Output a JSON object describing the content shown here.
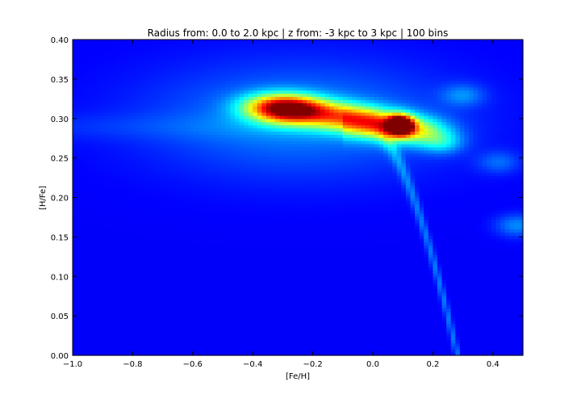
{
  "chart_data": {
    "type": "heatmap",
    "title": "Radius from: 0.0 to 2.0 kpc | z from: -3 kpc to 3 kpc | 100 bins",
    "xlabel": "[Fe/H]",
    "ylabel": "[H/Fe]",
    "xlim": [
      -1.0,
      0.5
    ],
    "ylim": [
      0.0,
      0.4
    ],
    "bins": 100,
    "colormap": "jet",
    "grid": false,
    "x_ticks": [
      -1.0,
      -0.8,
      -0.6,
      -0.4,
      -0.2,
      0.0,
      0.2,
      0.4
    ],
    "x_tick_labels": [
      "−1.0",
      "−0.8",
      "−0.6",
      "−0.4",
      "−0.2",
      "0.0",
      "0.2",
      "0.4"
    ],
    "y_ticks": [
      0.0,
      0.05,
      0.1,
      0.15,
      0.2,
      0.25,
      0.3,
      0.35,
      0.4
    ],
    "y_tick_labels": [
      "0.00",
      "0.05",
      "0.10",
      "0.15",
      "0.20",
      "0.25",
      "0.30",
      "0.35",
      "0.40"
    ],
    "density_features": [
      {
        "name": "peak",
        "x": 0.09,
        "y": 0.292,
        "weight": 1.0
      },
      {
        "name": "ridge",
        "x": -0.25,
        "y": 0.311,
        "weight": 0.58
      },
      {
        "name": "ridge",
        "x": -0.33,
        "y": 0.315,
        "weight": 0.45
      },
      {
        "name": "ridge",
        "x": -0.1,
        "y": 0.303,
        "weight": 0.38
      },
      {
        "name": "ridge",
        "x": 0.02,
        "y": 0.295,
        "weight": 0.35
      },
      {
        "name": "ridge",
        "x": 0.13,
        "y": 0.285,
        "weight": 0.4
      },
      {
        "name": "tail",
        "x": 0.23,
        "y": 0.27,
        "weight": 0.18
      },
      {
        "name": "branch",
        "x": 0.3,
        "y": 0.33,
        "weight": 0.12
      },
      {
        "name": "branch",
        "x": 0.42,
        "y": 0.245,
        "weight": 0.1
      },
      {
        "name": "branch",
        "x": 0.48,
        "y": 0.165,
        "weight": 0.14
      }
    ]
  }
}
